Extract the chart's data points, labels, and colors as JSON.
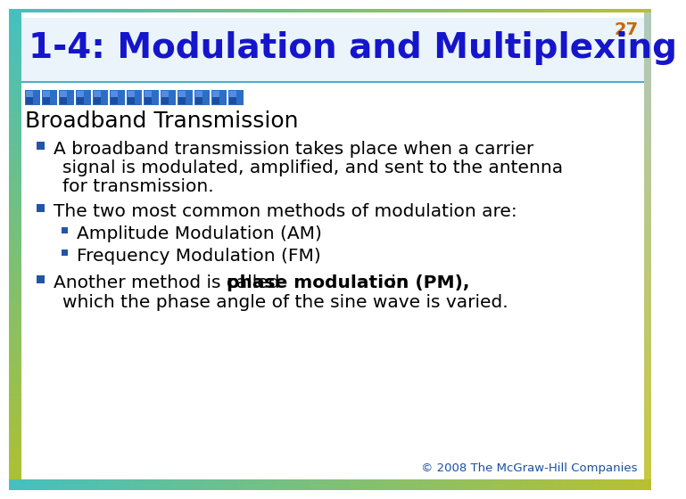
{
  "slide_number": "27",
  "title": "1-4: Modulation and Multiplexing",
  "section_header": "Broadband Transmission",
  "title_color": "#1515CC",
  "slide_number_color": "#CC6600",
  "background_color": "#FFFFFF",
  "bullet_color": "#2255AA",
  "copyright": "© 2008 The McGraw-Hill Companies",
  "border_left_top": "#45C0C0",
  "border_left_bottom": "#B0C030",
  "border_right_top": "#B0C8C8",
  "border_right_bottom": "#C8C840",
  "title_bg_color": "#EAF4FA",
  "squares_dark": "#1A4FA0",
  "squares_mid": "#2E6DC4",
  "squares_light": "#6699EE",
  "separator_color": "#55AACC"
}
